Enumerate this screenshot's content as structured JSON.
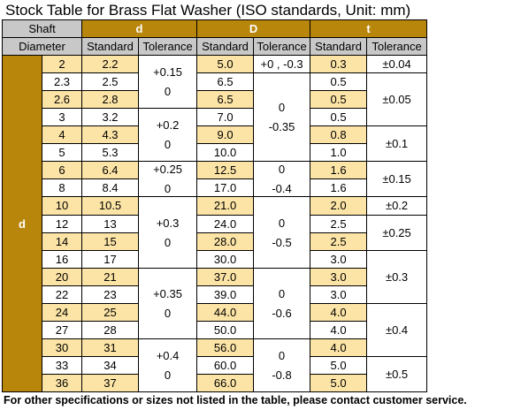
{
  "title": "Stock Table for Brass Flat Washer  (ISO standards, Unit: mm)",
  "header": {
    "shaft": "Shaft",
    "diameter": "Diameter",
    "d": "d",
    "D": "D",
    "t": "t",
    "standard": "Standard",
    "tolerance": "Tolerance"
  },
  "shaft_label": "d",
  "colors": {
    "gold": "#b8860b",
    "highlight": "#fce4a6",
    "header_grey": "#c8c8c8"
  },
  "rows": [
    {
      "shaft": "2",
      "d_std": "2.2",
      "D_std": "5.0",
      "t_std": "0.3",
      "hl": true
    },
    {
      "shaft": "2.3",
      "d_std": "2.5",
      "D_std": "6.5",
      "t_std": "0.5",
      "hl": false
    },
    {
      "shaft": "2.6",
      "d_std": "2.8",
      "D_std": "6.5",
      "t_std": "0.5",
      "hl": true
    },
    {
      "shaft": "3",
      "d_std": "3.2",
      "D_std": "7.0",
      "t_std": "0.5",
      "hl": false
    },
    {
      "shaft": "4",
      "d_std": "4.3",
      "D_std": "9.0",
      "t_std": "0.8",
      "hl": true
    },
    {
      "shaft": "5",
      "d_std": "5.3",
      "D_std": "10.0",
      "t_std": "1.0",
      "hl": false
    },
    {
      "shaft": "6",
      "d_std": "6.4",
      "D_std": "12.5",
      "t_std": "1.6",
      "hl": true
    },
    {
      "shaft": "8",
      "d_std": "8.4",
      "D_std": "17.0",
      "t_std": "1.6",
      "hl": false
    },
    {
      "shaft": "10",
      "d_std": "10.5",
      "D_std": "21.0",
      "t_std": "2.0",
      "hl": true
    },
    {
      "shaft": "12",
      "d_std": "13",
      "D_std": "24.0",
      "t_std": "2.5",
      "hl": false
    },
    {
      "shaft": "14",
      "d_std": "15",
      "D_std": "28.0",
      "t_std": "2.5",
      "hl": true
    },
    {
      "shaft": "16",
      "d_std": "17",
      "D_std": "30.0",
      "t_std": "3.0",
      "hl": false
    },
    {
      "shaft": "20",
      "d_std": "21",
      "D_std": "37.0",
      "t_std": "3.0",
      "hl": true
    },
    {
      "shaft": "22",
      "d_std": "23",
      "D_std": "39.0",
      "t_std": "3.0",
      "hl": false
    },
    {
      "shaft": "24",
      "d_std": "25",
      "D_std": "44.0",
      "t_std": "4.0",
      "hl": true
    },
    {
      "shaft": "27",
      "d_std": "28",
      "D_std": "50.0",
      "t_std": "4.0",
      "hl": false
    },
    {
      "shaft": "30",
      "d_std": "31",
      "D_std": "56.0",
      "t_std": "4.0",
      "hl": true
    },
    {
      "shaft": "33",
      "d_std": "34",
      "D_std": "60.0",
      "t_std": "5.0",
      "hl": false
    },
    {
      "shaft": "36",
      "d_std": "37",
      "D_std": "66.0",
      "t_std": "5.0",
      "hl": true
    }
  ],
  "d_tol": [
    {
      "start": 0,
      "span": 3,
      "lines": [
        "+0.15",
        "0"
      ]
    },
    {
      "start": 3,
      "span": 3,
      "lines": [
        "+0.2",
        "0"
      ]
    },
    {
      "start": 6,
      "span": 2,
      "lines": [
        "+0.25",
        "0"
      ]
    },
    {
      "start": 8,
      "span": 4,
      "lines": [
        "+0.3",
        "0"
      ]
    },
    {
      "start": 12,
      "span": 4,
      "lines": [
        "+0.35",
        "0"
      ]
    },
    {
      "start": 16,
      "span": 3,
      "lines": [
        "+0.4",
        "0"
      ]
    }
  ],
  "D_tol": [
    {
      "start": 0,
      "span": 1,
      "lines": [
        "+0 , -0.3"
      ]
    },
    {
      "start": 1,
      "span": 5,
      "lines": [
        "0",
        "-0.35"
      ]
    },
    {
      "start": 6,
      "span": 2,
      "lines": [
        "0",
        "-0.4"
      ]
    },
    {
      "start": 8,
      "span": 4,
      "lines": [
        "0",
        "-0.5"
      ]
    },
    {
      "start": 12,
      "span": 4,
      "lines": [
        "0",
        "-0.6"
      ]
    },
    {
      "start": 16,
      "span": 3,
      "lines": [
        "0",
        "-0.8"
      ]
    }
  ],
  "t_tol": [
    {
      "start": 0,
      "span": 1,
      "lines": [
        "±0.04"
      ]
    },
    {
      "start": 1,
      "span": 3,
      "lines": [
        "±0.05"
      ]
    },
    {
      "start": 4,
      "span": 2,
      "lines": [
        "±0.1"
      ]
    },
    {
      "start": 6,
      "span": 2,
      "lines": [
        "±0.15"
      ]
    },
    {
      "start": 8,
      "span": 1,
      "lines": [
        "±0.2"
      ]
    },
    {
      "start": 9,
      "span": 2,
      "lines": [
        "±0.25"
      ]
    },
    {
      "start": 11,
      "span": 3,
      "lines": [
        "±0.3"
      ]
    },
    {
      "start": 14,
      "span": 3,
      "lines": [
        "±0.4"
      ]
    },
    {
      "start": 17,
      "span": 2,
      "lines": [
        "±0.5"
      ]
    }
  ],
  "footer": "For other specifications or sizes not listed in the table, please contact customer service."
}
